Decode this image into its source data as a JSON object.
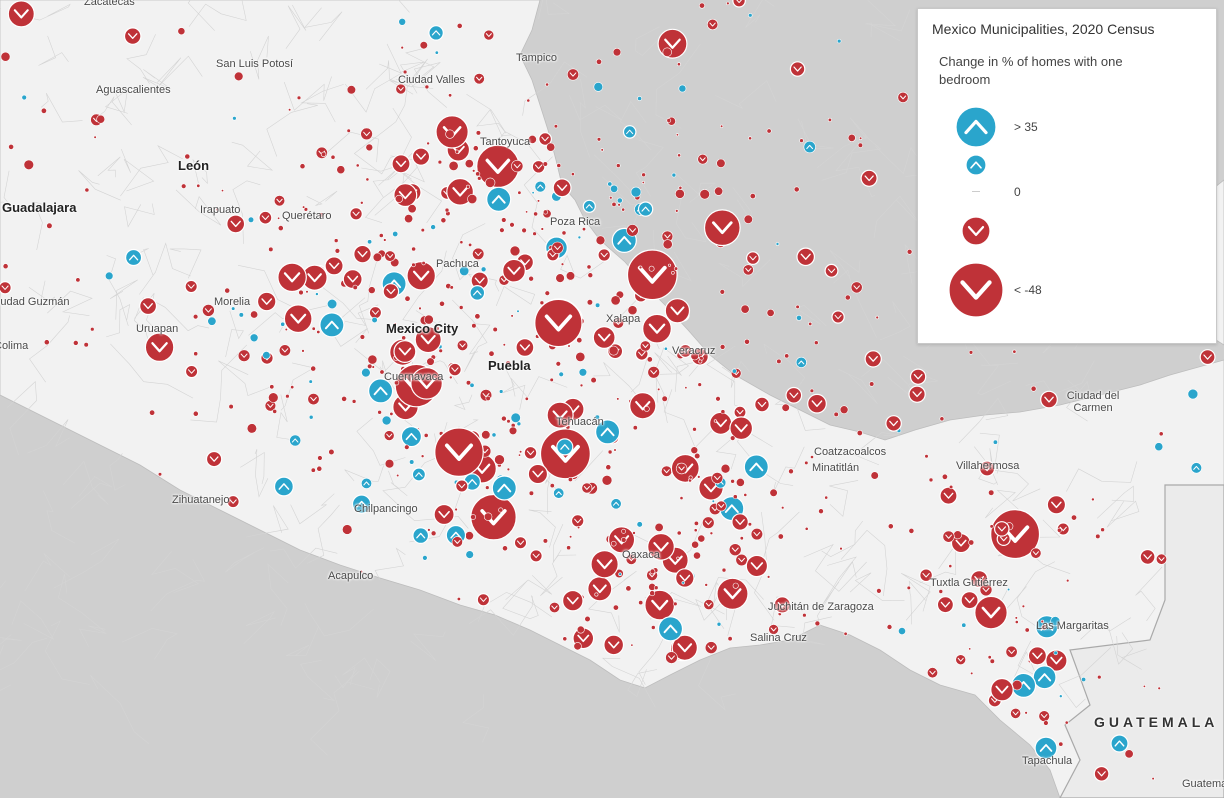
{
  "colors": {
    "land": "#f2f2f2",
    "water": "#cfcfcf",
    "border": "#bdbdbd",
    "increase": "#2aa5cc",
    "decrease": "#bf3238"
  },
  "legend": {
    "title": "Mexico Municipalities, 2020 Census",
    "subtitle": "Change in % of homes with one bedroom",
    "items": [
      {
        "label": "> 35",
        "direction": "up",
        "level": 1.0
      },
      {
        "label": "",
        "direction": "up",
        "level": 0.45
      },
      {
        "label": "0",
        "direction": "none",
        "level": 0.0
      },
      {
        "label": "",
        "direction": "down",
        "level": 0.6
      },
      {
        "label": "< -48",
        "direction": "down",
        "level": 1.0
      }
    ]
  },
  "places": [
    {
      "name": "Zacatecas",
      "type": "city"
    },
    {
      "name": "San Luis Potosí",
      "type": "city"
    },
    {
      "name": "Tampico",
      "type": "city"
    },
    {
      "name": "Ciudad Valles",
      "type": "city"
    },
    {
      "name": "Aguascalientes",
      "type": "city"
    },
    {
      "name": "Tantoyuca",
      "type": "city"
    },
    {
      "name": "León",
      "type": "major"
    },
    {
      "name": "Guadalajara",
      "type": "major"
    },
    {
      "name": "Irapuato",
      "type": "city"
    },
    {
      "name": "Querétaro",
      "type": "city"
    },
    {
      "name": "Poza Rica",
      "type": "city"
    },
    {
      "name": "Pachuca",
      "type": "city"
    },
    {
      "name": "Ciudad Guzmán",
      "type": "city"
    },
    {
      "name": "Morelia",
      "type": "city"
    },
    {
      "name": "Colima",
      "type": "city"
    },
    {
      "name": "Uruapan",
      "type": "city"
    },
    {
      "name": "Mexico City",
      "type": "major"
    },
    {
      "name": "Xalapa",
      "type": "city"
    },
    {
      "name": "Puebla",
      "type": "major"
    },
    {
      "name": "Veracruz",
      "type": "city"
    },
    {
      "name": "Cuernavaca",
      "type": "city"
    },
    {
      "name": "Tehuacán",
      "type": "city"
    },
    {
      "name": "Ciudad del Carmen",
      "type": "city"
    },
    {
      "name": "Coatzacoalcos",
      "type": "city"
    },
    {
      "name": "Minatitlán",
      "type": "city"
    },
    {
      "name": "Villahermosa",
      "type": "city"
    },
    {
      "name": "Zihuatanejo",
      "type": "city"
    },
    {
      "name": "Chilpancingo",
      "type": "city"
    },
    {
      "name": "Oaxaca",
      "type": "city"
    },
    {
      "name": "Acapulco",
      "type": "city"
    },
    {
      "name": "Tuxtla Gutiérrez",
      "type": "city"
    },
    {
      "name": "Juchitán de Zaragoza",
      "type": "city"
    },
    {
      "name": "Salina Cruz",
      "type": "city"
    },
    {
      "name": "Las Margaritas",
      "type": "city"
    },
    {
      "name": "GUATEMALA",
      "type": "country"
    },
    {
      "name": "Tapachula",
      "type": "city"
    },
    {
      "name": "Guatemala",
      "type": "city"
    }
  ]
}
